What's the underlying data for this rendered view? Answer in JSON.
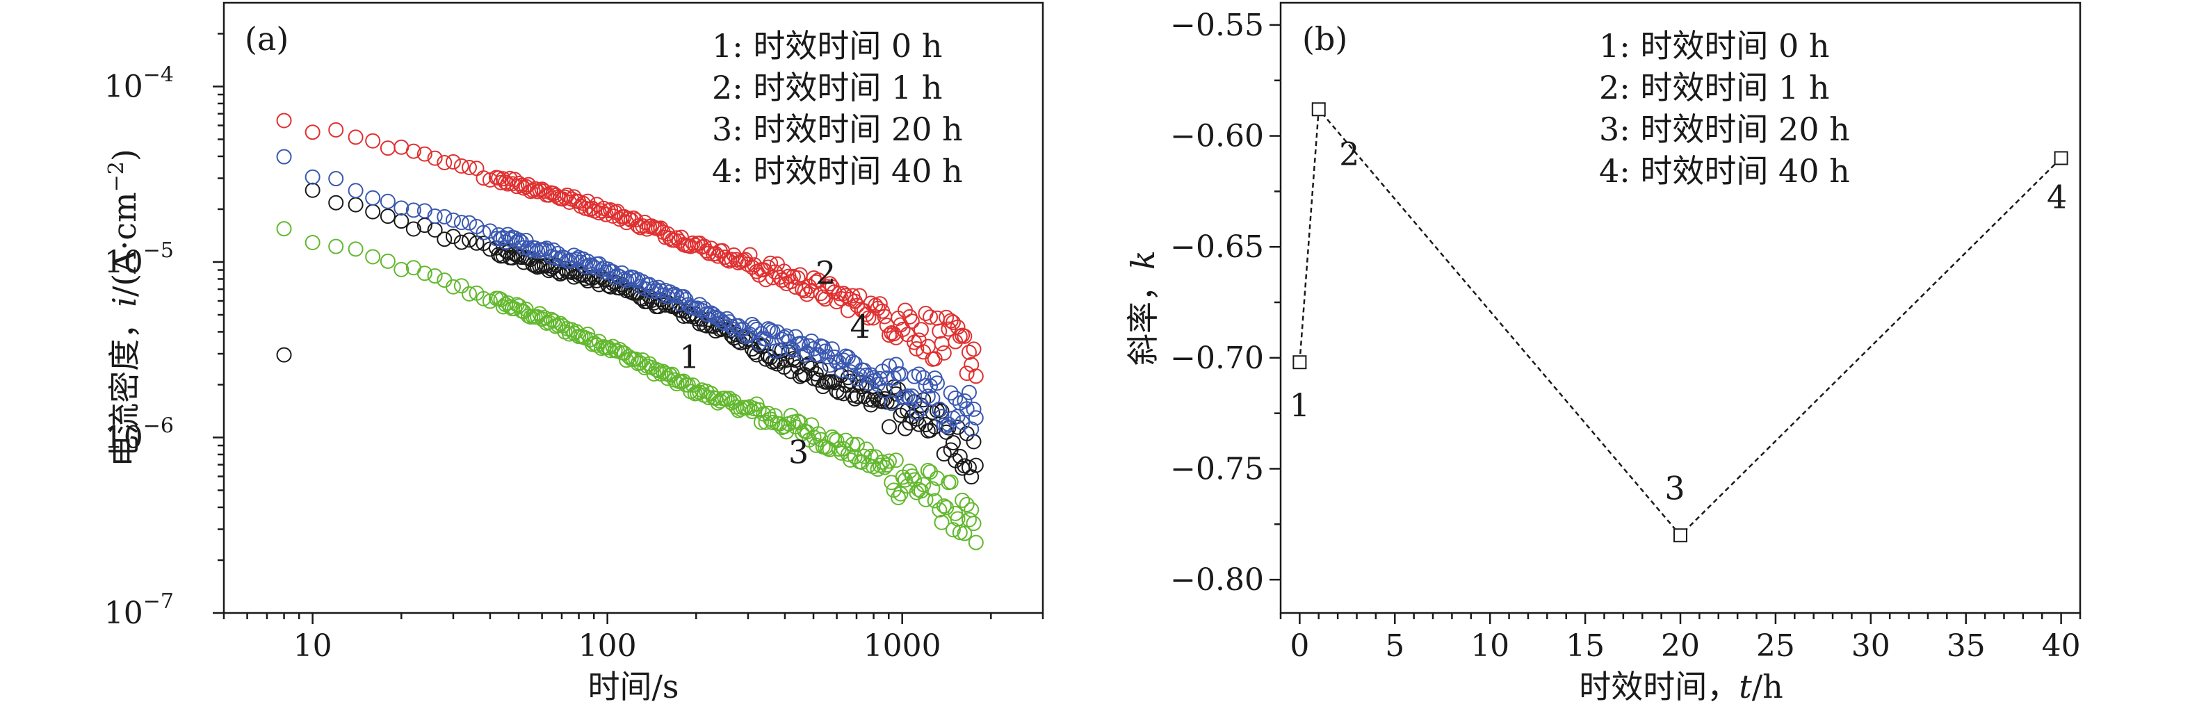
{
  "chart_data": [
    {
      "id": "a",
      "type": "scatter",
      "panel_label": "(a)",
      "xlabel": "时间/s",
      "ylabel_main": "电流密度，",
      "ylabel_var": "i",
      "ylabel_unit": "/(A·cm",
      "ylabel_exp": "−2",
      "ylabel_close": ")",
      "xscale": "log",
      "yscale": "log",
      "xlim": [
        5,
        3000
      ],
      "ylim": [
        1e-07,
        0.0003
      ],
      "xticks": [
        {
          "value": 10,
          "label": "10"
        },
        {
          "value": 100,
          "label": "100"
        },
        {
          "value": 1000,
          "label": "1000"
        }
      ],
      "yticks": [
        {
          "value": 0.0001,
          "base": "10",
          "exp": "−4"
        },
        {
          "value": 1e-05,
          "base": "10",
          "exp": "−5"
        },
        {
          "value": 1e-06,
          "base": "10",
          "exp": "−6"
        },
        {
          "value": 1e-07,
          "base": "10",
          "exp": "−7"
        }
      ],
      "legend": [
        "1: 时效时间 0 h",
        "2: 时效时间 1 h",
        "3: 时效时间 20 h",
        "4: 时效时间 40 h"
      ],
      "legend_position": "top-right",
      "marker": "open-circle",
      "series": [
        {
          "id": "1",
          "color": "#1a1a1a",
          "x_range": [
            8,
            1800
          ],
          "anchors": [
            [
              8,
              2.9e-06
            ],
            [
              10,
              2.45e-05
            ],
            [
              20,
              1.7e-05
            ],
            [
              50,
              1.05e-05
            ],
            [
              100,
              7.6e-06
            ],
            [
              200,
              4.8e-06
            ],
            [
              500,
              2.35e-06
            ],
            [
              1000,
              1.45e-06
            ],
            [
              1800,
              7.8e-07
            ]
          ],
          "label": {
            "text": "1",
            "x": 190,
            "y": 2.85e-06
          }
        },
        {
          "id": "2",
          "color": "#e03030",
          "x_range": [
            8,
            1800
          ],
          "anchors": [
            [
              8,
              6.6e-05
            ],
            [
              10,
              5.8e-05
            ],
            [
              20,
              4.3e-05
            ],
            [
              50,
              2.8e-05
            ],
            [
              100,
              1.95e-05
            ],
            [
              200,
              1.25e-05
            ],
            [
              500,
              7.2e-06
            ],
            [
              1000,
              4.6e-06
            ],
            [
              1800,
              2.9e-06
            ]
          ],
          "label": {
            "text": "2",
            "x": 550,
            "y": 8.6e-06
          }
        },
        {
          "id": "3",
          "color": "#62b82e",
          "x_range": [
            8,
            1800
          ],
          "anchors": [
            [
              8,
              1.52e-05
            ],
            [
              10,
              1.32e-05
            ],
            [
              20,
              9.4e-06
            ],
            [
              50,
              5.4e-06
            ],
            [
              100,
              3.3e-06
            ],
            [
              200,
              1.85e-06
            ],
            [
              500,
              1.05e-06
            ],
            [
              1000,
              6e-07
            ],
            [
              1500,
              4e-07
            ],
            [
              1800,
              2.5e-07
            ]
          ],
          "label": {
            "text": "3",
            "x": 445,
            "y": 8.2e-07
          }
        },
        {
          "id": "4",
          "color": "#3a58b0",
          "x_range": [
            8,
            1800
          ],
          "anchors": [
            [
              8,
              3.8e-05
            ],
            [
              10,
              3.15e-05
            ],
            [
              20,
              2.1e-05
            ],
            [
              50,
              1.3e-05
            ],
            [
              100,
              9e-06
            ],
            [
              200,
              5.6e-06
            ],
            [
              300,
              3.9e-06
            ],
            [
              500,
              3.1e-06
            ],
            [
              1000,
              1.9e-06
            ],
            [
              1800,
              1.3e-06
            ]
          ],
          "label": {
            "text": "4",
            "x": 720,
            "y": 4.25e-06
          }
        }
      ]
    },
    {
      "id": "b",
      "type": "line",
      "panel_label": "(b)",
      "xlabel_main": "时效时间，",
      "xlabel_var": "t",
      "xlabel_unit": "/h",
      "ylabel_main": "斜率，",
      "ylabel_var": "k",
      "xlim": [
        -1,
        41
      ],
      "ylim": [
        -0.815,
        -0.54
      ],
      "xticks": [
        0,
        5,
        10,
        15,
        20,
        25,
        30,
        35,
        40
      ],
      "yticks": [
        {
          "value": -0.55,
          "label": "−0.55"
        },
        {
          "value": -0.6,
          "label": "−0.60"
        },
        {
          "value": -0.65,
          "label": "−0.65"
        },
        {
          "value": -0.7,
          "label": "−0.70"
        },
        {
          "value": -0.75,
          "label": "−0.75"
        },
        {
          "value": -0.8,
          "label": "−0.80"
        }
      ],
      "legend": [
        "1: 时效时间 0 h",
        "2: 时效时间 1 h",
        "3: 时效时间 20 h",
        "4: 时效时间 40 h"
      ],
      "legend_position": "top-center",
      "marker": "open-square",
      "line_style": "dashed",
      "points": [
        {
          "label": "1",
          "x": 0,
          "y": -0.702
        },
        {
          "label": "2",
          "x": 1,
          "y": -0.588
        },
        {
          "label": "3",
          "x": 20,
          "y": -0.78
        },
        {
          "label": "4",
          "x": 40,
          "y": -0.61
        }
      ]
    }
  ]
}
